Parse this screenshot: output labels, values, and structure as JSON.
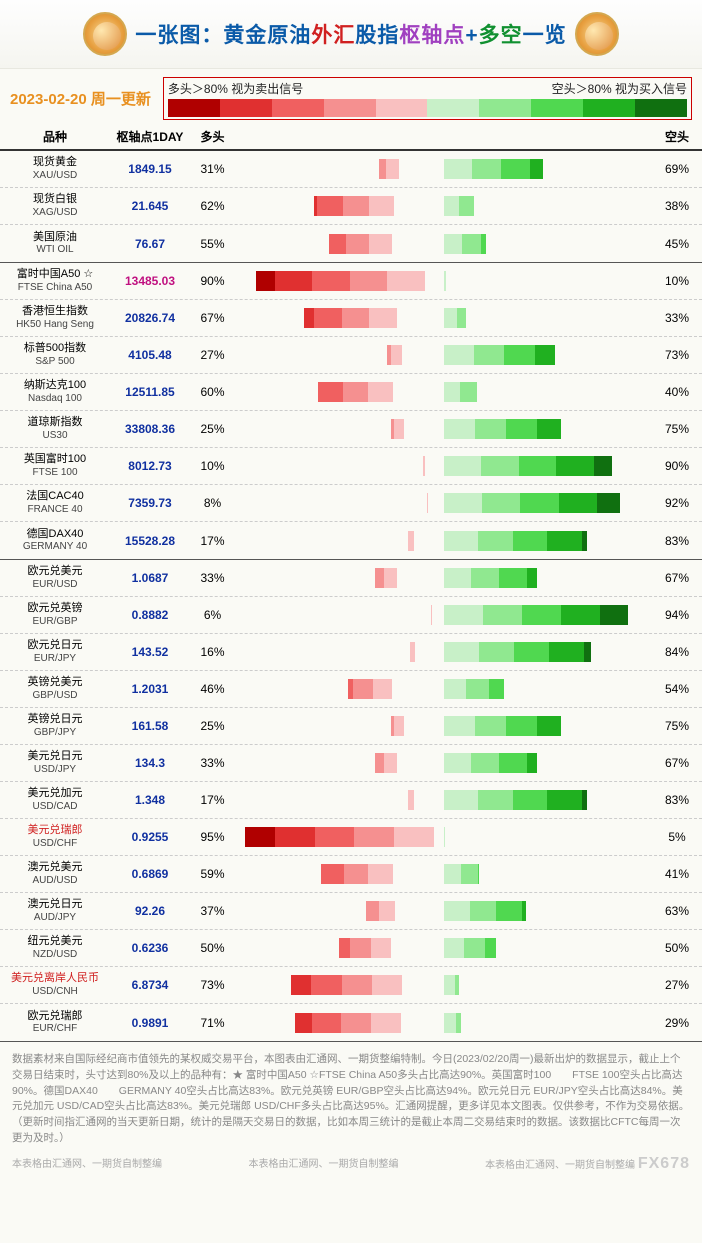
{
  "title": {
    "prefix": "一张图：",
    "parts": [
      {
        "text": "黄金原油",
        "color": "#0a5aa8"
      },
      {
        "text": "外汇",
        "color": "#d02020"
      },
      {
        "text": "股指",
        "color": "#0a5aa8"
      },
      {
        "text": "枢轴点",
        "color": "#a040c0"
      },
      {
        "text": "+",
        "color": "#0a5aa8"
      },
      {
        "text": "多空",
        "color": "#109030"
      },
      {
        "text": "一览",
        "color": "#0a5aa8"
      }
    ]
  },
  "date_text": "2023-02-20 周一更新",
  "date_color": "#e89020",
  "legend": {
    "left_text": "多头＞80%  视为卖出信号",
    "right_text": "空头＞80%  视为买入信号",
    "colors": [
      "#b00000",
      "#e03030",
      "#f06060",
      "#f59090",
      "#f9c0c0",
      "#c8f0c8",
      "#90e890",
      "#50d850",
      "#20b020",
      "#107010"
    ]
  },
  "headers": {
    "name": "品种",
    "pivot": "枢轴点1DAY",
    "bull": "多头",
    "bear": "空头"
  },
  "bull_palette": [
    "#f9c0c0",
    "#f59090",
    "#f06060",
    "#e03030",
    "#b00000"
  ],
  "bear_palette": [
    "#c8f0c8",
    "#90e890",
    "#50d850",
    "#20b020",
    "#107010"
  ],
  "pivot_color": "#1030a0",
  "sections": [
    {
      "rows": [
        {
          "cn": "现货黄金",
          "en": "XAU/USD",
          "pivot": "1849.15",
          "bull": 31,
          "bear": 69
        },
        {
          "cn": "现货白银",
          "en": "XAG/USD",
          "pivot": "21.645",
          "bull": 62,
          "bear": 38
        },
        {
          "cn": "美国原油",
          "en": "WTI OIL",
          "pivot": "76.67",
          "bull": 55,
          "bear": 45
        }
      ]
    },
    {
      "rows": [
        {
          "cn": "富时中国A50 ☆",
          "en": "FTSE China A50",
          "pivot": "13485.03",
          "bull": 90,
          "bear": 10,
          "pivot_color": "#c01080"
        },
        {
          "cn": "香港恒生指数",
          "en": "HK50 Hang Seng",
          "pivot": "20826.74",
          "bull": 67,
          "bear": 33
        },
        {
          "cn": "标普500指数",
          "en": "S&P 500",
          "pivot": "4105.48",
          "bull": 27,
          "bear": 73
        },
        {
          "cn": "纳斯达克100",
          "en": "Nasdaq 100",
          "pivot": "12511.85",
          "bull": 60,
          "bear": 40
        },
        {
          "cn": "道琼斯指数",
          "en": "US30",
          "pivot": "33808.36",
          "bull": 25,
          "bear": 75
        },
        {
          "cn": "英国富时100",
          "en": "FTSE 100",
          "pivot": "8012.73",
          "bull": 10,
          "bear": 90
        },
        {
          "cn": "法国CAC40",
          "en": "FRANCE 40",
          "pivot": "7359.73",
          "bull": 8,
          "bear": 92
        },
        {
          "cn": "德国DAX40",
          "en": "GERMANY 40",
          "pivot": "15528.28",
          "bull": 17,
          "bear": 83
        }
      ]
    },
    {
      "rows": [
        {
          "cn": "欧元兑美元",
          "en": "EUR/USD",
          "pivot": "1.0687",
          "bull": 33,
          "bear": 67
        },
        {
          "cn": "欧元兑英镑",
          "en": "EUR/GBP",
          "pivot": "0.8882",
          "bull": 6,
          "bear": 94
        },
        {
          "cn": "欧元兑日元",
          "en": "EUR/JPY",
          "pivot": "143.52",
          "bull": 16,
          "bear": 84
        },
        {
          "cn": "英镑兑美元",
          "en": "GBP/USD",
          "pivot": "1.2031",
          "bull": 46,
          "bear": 54
        },
        {
          "cn": "英镑兑日元",
          "en": "GBP/JPY",
          "pivot": "161.58",
          "bull": 25,
          "bear": 75
        },
        {
          "cn": "美元兑日元",
          "en": "USD/JPY",
          "pivot": "134.3",
          "bull": 33,
          "bear": 67
        },
        {
          "cn": "美元兑加元",
          "en": "USD/CAD",
          "pivot": "1.348",
          "bull": 17,
          "bear": 83
        },
        {
          "cn": "美元兑瑞郎",
          "en": "USD/CHF",
          "pivot": "0.9255",
          "bull": 95,
          "bear": 5,
          "cn_color": "#d02020"
        },
        {
          "cn": "澳元兑美元",
          "en": "AUD/USD",
          "pivot": "0.6869",
          "bull": 59,
          "bear": 41
        },
        {
          "cn": "澳元兑日元",
          "en": "AUD/JPY",
          "pivot": "92.26",
          "bull": 37,
          "bear": 63
        },
        {
          "cn": "纽元兑美元",
          "en": "NZD/USD",
          "pivot": "0.6236",
          "bull": 50,
          "bear": 50
        },
        {
          "cn": "美元兑离岸人民币",
          "en": "USD/CNH",
          "pivot": "6.8734",
          "bull": 73,
          "bear": 27,
          "cn_color": "#d02020",
          "stack_en": true
        },
        {
          "cn": "欧元兑瑞郎",
          "en": "EUR/CHF",
          "pivot": "0.9891",
          "bull": 71,
          "bear": 29
        }
      ]
    }
  ],
  "footer": "数据素材来自国际经纪商市值领先的某权威交易平台，本图表由汇通网、一期货整编特制。今日(2023/02/20周一)最新出炉的数据显示，截止上个交易日结束时，头寸达到80%及以上的品种有：★ 富时中国A50 ☆FTSE China A50多头占比高达90%。英国富时100　　FTSE 100空头占比高达90%。德国DAX40　　GERMANY 40空头占比高达83%。欧元兑英镑 EUR/GBP空头占比高达94%。欧元兑日元 EUR/JPY空头占比高达84%。美元兑加元 USD/CAD空头占比高达83%。美元兑瑞郎 USD/CHF多头占比高达95%。汇通网提醒，更多详见本文图表。仅供参考，不作为交易依据。（更新时间指汇通网的当天更新日期，统计的是隔天交易日的数据，比如本周三统计的是截止本周二交易结束时的数据。该数据比CFTC每周一次更为及时。）",
  "watermark_text": "本表格由汇通网、一期货自制整编",
  "watermark_big": "FX678"
}
